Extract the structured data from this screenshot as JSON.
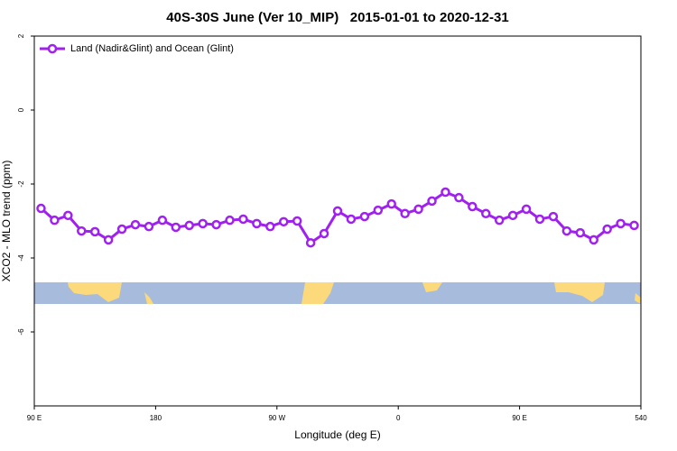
{
  "chart_data": {
    "type": "line",
    "title": "40S-30S June (Ver 10_MIP)   2015-01-01 to 2020-12-31",
    "xlabel": "Longitude (deg E)",
    "ylabel": "XCO2 - MLO trend (ppm)",
    "x": [
      95,
      105,
      115,
      125,
      135,
      145,
      155,
      165,
      175,
      185,
      195,
      205,
      215,
      225,
      235,
      245,
      255,
      265,
      275,
      285,
      295,
      305,
      315,
      325,
      335,
      345,
      355,
      365,
      375,
      385,
      395,
      405,
      415,
      425,
      435,
      445,
      455,
      465,
      475,
      485,
      495,
      505,
      515,
      525,
      535
    ],
    "series": [
      {
        "name": "Land (Nadir&Glint) and Ocean (Glint)",
        "color": "#a020f0",
        "values": [
          -2.66,
          -2.98,
          -2.85,
          -3.27,
          -3.29,
          -3.51,
          -3.22,
          -3.1,
          -3.15,
          -2.98,
          -3.17,
          -3.12,
          -3.07,
          -3.1,
          -2.98,
          -2.95,
          -3.07,
          -3.15,
          -3.02,
          -3.0,
          -3.59,
          -3.34,
          -2.73,
          -2.95,
          -2.88,
          -2.71,
          -2.54,
          -2.8,
          -2.68,
          -2.46,
          -2.22,
          -2.37,
          -2.61,
          -2.8,
          -2.98,
          -2.85,
          -2.68,
          -2.95,
          -2.88,
          -3.27,
          -3.32,
          -3.51,
          -3.22,
          -3.07,
          -3.12
        ]
      }
    ],
    "xlim": [
      90,
      540
    ],
    "xticks": [
      {
        "value": 90,
        "label": "90 E"
      },
      180,
      {
        "value": 270,
        "label": "90 W"
      },
      {
        "value": 360,
        "label": "0"
      },
      {
        "value": 450,
        "label": "90 E"
      },
      540
    ],
    "ylim": [
      -8,
      2
    ],
    "yticks": [
      -6,
      -4,
      -2,
      0,
      2
    ],
    "legend": "top-left"
  }
}
